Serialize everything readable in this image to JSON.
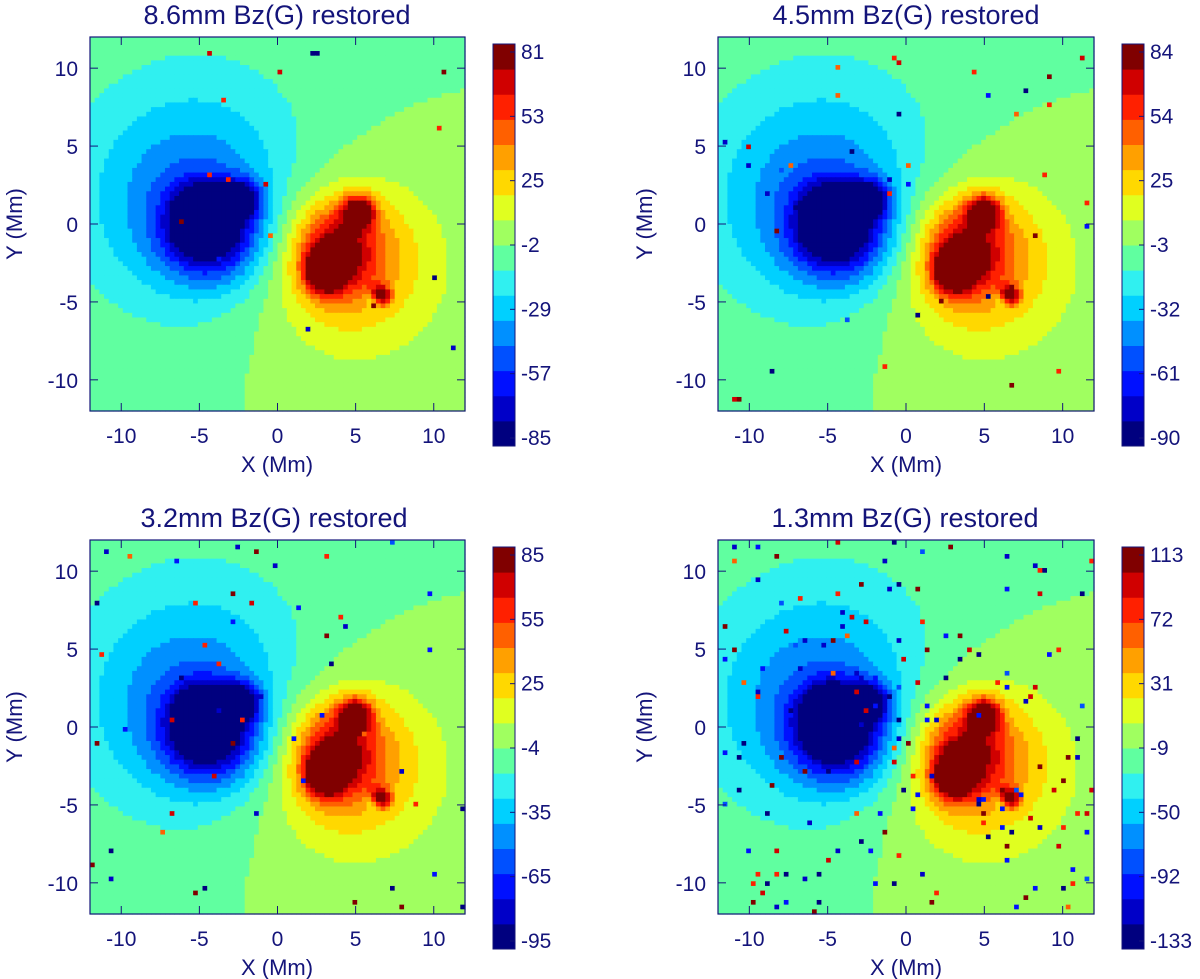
{
  "colors": {
    "text": "#14147a",
    "colormap": [
      "#00007f",
      "#0000c8",
      "#0010ff",
      "#0050ff",
      "#0090ff",
      "#00d0ff",
      "#30f0f0",
      "#60ffa0",
      "#a0ff60",
      "#e0ff20",
      "#ffd800",
      "#ffa000",
      "#ff6000",
      "#ff2000",
      "#d00000",
      "#800000"
    ]
  },
  "chart_data": [
    {
      "type": "heatmap",
      "title": "8.6mm Bz(G) restored",
      "xlabel": "X (Mm)",
      "ylabel": "Y (Mm)",
      "xlim": [
        -12,
        12
      ],
      "ylim": [
        -12,
        12
      ],
      "xticks": [
        -10,
        -5,
        0,
        5,
        10
      ],
      "yticks": [
        -10,
        -5,
        0,
        5,
        10
      ],
      "colorbar": {
        "min": -85,
        "max": 81,
        "ticks": [
          81,
          53,
          25,
          -2,
          -29,
          -57,
          -85
        ]
      },
      "noise": 0.002,
      "features": [
        {
          "name": "negative polarity",
          "x": -4.8,
          "y": 0.5,
          "value": -85
        },
        {
          "name": "positive polarity",
          "x": 3.0,
          "y": -3.0,
          "value": 81
        },
        {
          "name": "positive secondary",
          "x": 5.2,
          "y": 0.8,
          "value": 75
        }
      ]
    },
    {
      "type": "heatmap",
      "title": "4.5mm Bz(G) restored",
      "xlabel": "X (Mm)",
      "ylabel": "Y (Mm)",
      "xlim": [
        -12,
        12
      ],
      "ylim": [
        -12,
        12
      ],
      "xticks": [
        -10,
        -5,
        0,
        5,
        10
      ],
      "yticks": [
        -10,
        -5,
        0,
        5,
        10
      ],
      "colorbar": {
        "min": -90,
        "max": 84,
        "ticks": [
          84,
          54,
          25,
          -3,
          -32,
          -61,
          -90
        ]
      },
      "noise": 0.005,
      "features": [
        {
          "name": "negative polarity",
          "x": -4.8,
          "y": 0.5,
          "value": -90
        },
        {
          "name": "positive polarity",
          "x": 3.0,
          "y": -3.0,
          "value": 84
        },
        {
          "name": "positive secondary",
          "x": 5.0,
          "y": 0.8,
          "value": 78
        }
      ]
    },
    {
      "type": "heatmap",
      "title": "3.2mm Bz(G) restored",
      "xlabel": "X (Mm)",
      "ylabel": "Y (Mm)",
      "xlim": [
        -12,
        12
      ],
      "ylim": [
        -12,
        12
      ],
      "xticks": [
        -10,
        -5,
        0,
        5,
        10
      ],
      "yticks": [
        -10,
        -5,
        0,
        5,
        10
      ],
      "colorbar": {
        "min": -95,
        "max": 85,
        "ticks": [
          85,
          55,
          25,
          -4,
          -35,
          -65,
          -95
        ]
      },
      "noise": 0.008,
      "features": [
        {
          "name": "negative polarity",
          "x": -4.8,
          "y": 0.7,
          "value": -95
        },
        {
          "name": "positive polarity",
          "x": 3.0,
          "y": -3.0,
          "value": 85
        },
        {
          "name": "positive secondary",
          "x": 5.0,
          "y": 0.8,
          "value": 80
        }
      ]
    },
    {
      "type": "heatmap",
      "title": "1.3mm Bz(G) restored",
      "xlabel": "X (Mm)",
      "ylabel": "Y (Mm)",
      "xlim": [
        -12,
        12
      ],
      "ylim": [
        -12,
        12
      ],
      "xticks": [
        -10,
        -5,
        0,
        5,
        10
      ],
      "yticks": [
        -10,
        -5,
        0,
        5,
        10
      ],
      "colorbar": {
        "min": -133,
        "max": 113,
        "ticks": [
          113,
          72,
          31,
          -9,
          -50,
          -92,
          -133
        ]
      },
      "noise": 0.03,
      "features": [
        {
          "name": "negative polarity",
          "x": -4.8,
          "y": 0.8,
          "value": -133
        },
        {
          "name": "positive polarity",
          "x": 3.0,
          "y": -3.2,
          "value": 113
        },
        {
          "name": "positive secondary",
          "x": 5.0,
          "y": 0.8,
          "value": 100
        }
      ]
    }
  ]
}
